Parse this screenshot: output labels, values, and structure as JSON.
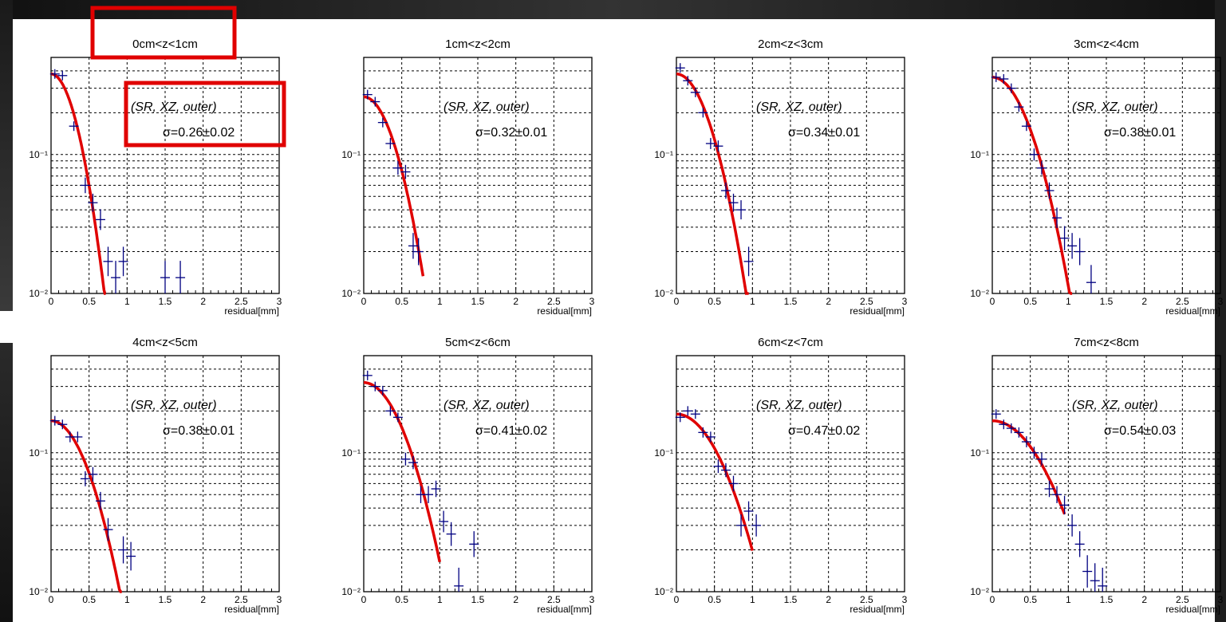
{
  "chart_data": [
    {
      "type": "scatter",
      "title": "0cm<z<1cm",
      "xlabel": "residual[mm]",
      "yscale": "log",
      "ylim": [
        0.01,
        0.5
      ],
      "xlim": [
        0,
        3
      ],
      "xticks": [
        "0",
        "0.5",
        "1",
        "1.5",
        "2",
        "2.5",
        "3"
      ],
      "yticks": [
        "10⁻²",
        "10⁻¹"
      ],
      "annotation": "(SR, XZ, outer)",
      "sigma_label": "σ=0.26±0.02",
      "highlighted": true,
      "points": [
        [
          0.05,
          0.38
        ],
        [
          0.15,
          0.37
        ],
        [
          0.3,
          0.16
        ],
        [
          0.45,
          0.06
        ],
        [
          0.55,
          0.045
        ],
        [
          0.65,
          0.034
        ],
        [
          0.75,
          0.017
        ],
        [
          0.85,
          0.013
        ],
        [
          0.95,
          0.017
        ],
        [
          1.5,
          0.013
        ],
        [
          1.7,
          0.013
        ]
      ],
      "fit_sigma": 0.26,
      "fit_amp": 0.38,
      "fit_xmax": 0.72
    },
    {
      "type": "scatter",
      "title": "1cm<z<2cm",
      "xlabel": "residual[mm]",
      "yscale": "log",
      "ylim": [
        0.01,
        0.5
      ],
      "xlim": [
        0,
        3
      ],
      "xticks": [
        "0",
        "0.5",
        "1",
        "1.5",
        "2",
        "2.5",
        "3"
      ],
      "yticks": [
        "10⁻²",
        "10⁻¹"
      ],
      "annotation": "(SR, XZ, outer)",
      "sigma_label": "σ=0.32±0.01",
      "highlighted": false,
      "points": [
        [
          0.05,
          0.27
        ],
        [
          0.15,
          0.24
        ],
        [
          0.25,
          0.17
        ],
        [
          0.35,
          0.12
        ],
        [
          0.45,
          0.08
        ],
        [
          0.55,
          0.075
        ],
        [
          0.65,
          0.022
        ],
        [
          0.72,
          0.02
        ]
      ],
      "fit_sigma": 0.32,
      "fit_amp": 0.26,
      "fit_xmax": 0.78
    },
    {
      "type": "scatter",
      "title": "2cm<z<3cm",
      "xlabel": "residual[mm]",
      "yscale": "log",
      "ylim": [
        0.01,
        0.5
      ],
      "xlim": [
        0,
        3
      ],
      "xticks": [
        "0",
        "0.5",
        "1",
        "1.5",
        "2",
        "2.5",
        "3"
      ],
      "yticks": [
        "10⁻²",
        "10⁻¹"
      ],
      "annotation": "(SR, XZ, outer)",
      "sigma_label": "σ=0.34±0.01",
      "highlighted": false,
      "points": [
        [
          0.05,
          0.42
        ],
        [
          0.15,
          0.34
        ],
        [
          0.25,
          0.28
        ],
        [
          0.35,
          0.2
        ],
        [
          0.45,
          0.12
        ],
        [
          0.55,
          0.115
        ],
        [
          0.65,
          0.055
        ],
        [
          0.75,
          0.045
        ],
        [
          0.85,
          0.04
        ],
        [
          0.95,
          0.017
        ]
      ],
      "fit_sigma": 0.34,
      "fit_amp": 0.38,
      "fit_xmax": 0.95
    },
    {
      "type": "scatter",
      "title": "3cm<z<4cm",
      "xlabel": "residual[mm]",
      "yscale": "log",
      "ylim": [
        0.01,
        0.5
      ],
      "xlim": [
        0,
        3
      ],
      "xticks": [
        "0",
        "0.5",
        "1",
        "1.5",
        "2",
        "2.5",
        "3"
      ],
      "yticks": [
        "10⁻²",
        "10⁻¹"
      ],
      "annotation": "(SR, XZ, outer)",
      "sigma_label": "σ=0.38±0.01",
      "highlighted": false,
      "points": [
        [
          0.05,
          0.36
        ],
        [
          0.15,
          0.35
        ],
        [
          0.25,
          0.3
        ],
        [
          0.35,
          0.22
        ],
        [
          0.45,
          0.16
        ],
        [
          0.55,
          0.1
        ],
        [
          0.65,
          0.08
        ],
        [
          0.75,
          0.055
        ],
        [
          0.85,
          0.035
        ],
        [
          0.95,
          0.025
        ],
        [
          1.05,
          0.022
        ],
        [
          1.15,
          0.02
        ],
        [
          1.3,
          0.012
        ]
      ],
      "fit_sigma": 0.38,
      "fit_amp": 0.36,
      "fit_xmax": 1.05
    },
    {
      "type": "scatter",
      "title": "4cm<z<5cm",
      "xlabel": "residual[mm]",
      "yscale": "log",
      "ylim": [
        0.01,
        0.5
      ],
      "xlim": [
        0,
        3
      ],
      "xticks": [
        "0",
        "0.5",
        "1",
        "1.5",
        "2",
        "2.5",
        "3"
      ],
      "yticks": [
        "10⁻²",
        "10⁻¹"
      ],
      "annotation": "(SR, XZ, outer)",
      "sigma_label": "σ=0.38±0.01",
      "highlighted": false,
      "points": [
        [
          0.05,
          0.17
        ],
        [
          0.15,
          0.16
        ],
        [
          0.25,
          0.13
        ],
        [
          0.35,
          0.13
        ],
        [
          0.45,
          0.065
        ],
        [
          0.55,
          0.07
        ],
        [
          0.65,
          0.045
        ],
        [
          0.75,
          0.028
        ],
        [
          0.95,
          0.02
        ],
        [
          1.05,
          0.018
        ]
      ],
      "fit_sigma": 0.38,
      "fit_amp": 0.17,
      "fit_xmax": 0.93
    },
    {
      "type": "scatter",
      "title": "5cm<z<6cm",
      "xlabel": "residual[mm]",
      "yscale": "log",
      "ylim": [
        0.01,
        0.5
      ],
      "xlim": [
        0,
        3
      ],
      "xticks": [
        "0",
        "0.5",
        "1",
        "1.5",
        "2",
        "2.5",
        "3"
      ],
      "yticks": [
        "10⁻²",
        "10⁻¹"
      ],
      "annotation": "(SR, XZ, outer)",
      "sigma_label": "σ=0.41±0.02",
      "highlighted": false,
      "points": [
        [
          0.05,
          0.36
        ],
        [
          0.15,
          0.3
        ],
        [
          0.25,
          0.28
        ],
        [
          0.35,
          0.2
        ],
        [
          0.45,
          0.18
        ],
        [
          0.55,
          0.09
        ],
        [
          0.65,
          0.085
        ],
        [
          0.75,
          0.05
        ],
        [
          0.85,
          0.05
        ],
        [
          0.95,
          0.055
        ],
        [
          1.05,
          0.032
        ],
        [
          1.15,
          0.026
        ],
        [
          1.25,
          0.011
        ],
        [
          1.45,
          0.022
        ]
      ],
      "fit_sigma": 0.41,
      "fit_amp": 0.32,
      "fit_xmax": 1.0
    },
    {
      "type": "scatter",
      "title": "6cm<z<7cm",
      "xlabel": "residual[mm]",
      "yscale": "log",
      "ylim": [
        0.01,
        0.5
      ],
      "xlim": [
        0,
        3
      ],
      "xticks": [
        "0",
        "0.5",
        "1",
        "1.5",
        "2",
        "2.5",
        "3"
      ],
      "yticks": [
        "10⁻²",
        "10⁻¹"
      ],
      "annotation": "(SR, XZ, outer)",
      "sigma_label": "σ=0.47±0.02",
      "highlighted": false,
      "points": [
        [
          0.05,
          0.18
        ],
        [
          0.15,
          0.2
        ],
        [
          0.25,
          0.19
        ],
        [
          0.35,
          0.14
        ],
        [
          0.45,
          0.13
        ],
        [
          0.55,
          0.08
        ],
        [
          0.65,
          0.075
        ],
        [
          0.75,
          0.06
        ],
        [
          0.85,
          0.03
        ],
        [
          0.95,
          0.038
        ],
        [
          1.05,
          0.03
        ]
      ],
      "fit_sigma": 0.47,
      "fit_amp": 0.19,
      "fit_xmax": 1.0
    },
    {
      "type": "scatter",
      "title": "7cm<z<8cm",
      "xlabel": "residual[mm]",
      "yscale": "log",
      "ylim": [
        0.01,
        0.5
      ],
      "xlim": [
        0,
        3
      ],
      "xticks": [
        "0",
        "0.5",
        "1",
        "1.5",
        "2",
        "2.5",
        "3"
      ],
      "yticks": [
        "10⁻²",
        "10⁻¹"
      ],
      "annotation": "(SR, XZ, outer)",
      "sigma_label": "σ=0.54±0.03",
      "highlighted": false,
      "points": [
        [
          0.05,
          0.19
        ],
        [
          0.15,
          0.16
        ],
        [
          0.25,
          0.15
        ],
        [
          0.35,
          0.14
        ],
        [
          0.45,
          0.12
        ],
        [
          0.55,
          0.1
        ],
        [
          0.65,
          0.09
        ],
        [
          0.75,
          0.055
        ],
        [
          0.85,
          0.05
        ],
        [
          0.95,
          0.042
        ],
        [
          1.05,
          0.03
        ],
        [
          1.15,
          0.022
        ],
        [
          1.25,
          0.014
        ],
        [
          1.35,
          0.012
        ],
        [
          1.45,
          0.011
        ]
      ],
      "fit_sigma": 0.54,
      "fit_amp": 0.17,
      "fit_xmax": 0.95
    }
  ],
  "colors": {
    "points": "#000080",
    "fit": "#e00000",
    "highlight": "#e00000",
    "grid": "#000000"
  }
}
